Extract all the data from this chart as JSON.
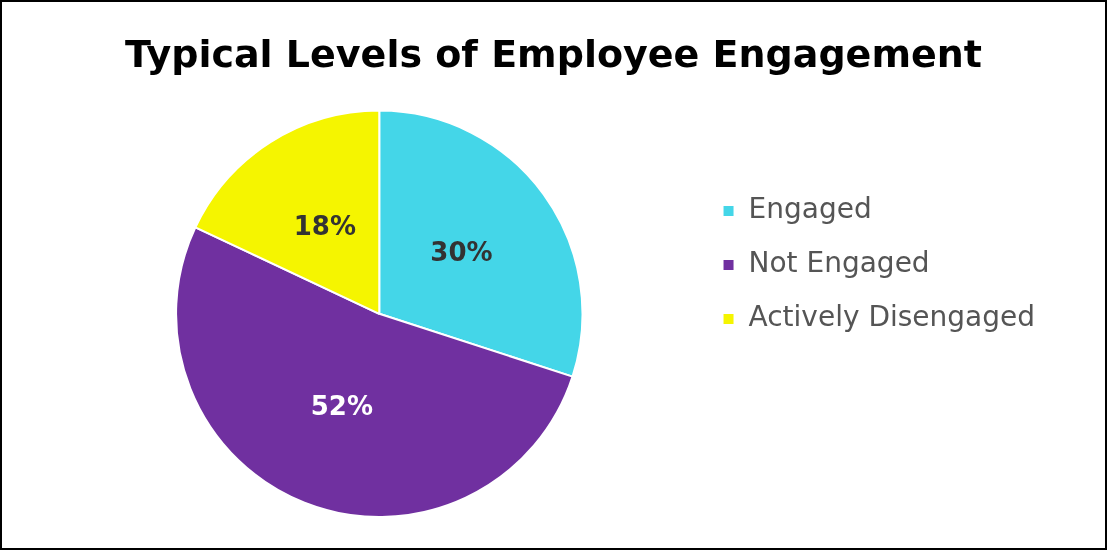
{
  "chart_data": {
    "type": "pie",
    "title": "Typical Levels of Employee Engagement",
    "categories": [
      "Engaged",
      "Not Engaged",
      "Actively Disengaged"
    ],
    "values": [
      30,
      52,
      18
    ],
    "colors": [
      "#44d6e8",
      "#7030a0",
      "#f5f500"
    ],
    "value_labels": [
      "30%",
      "52%",
      "18%"
    ],
    "legend": "right"
  }
}
